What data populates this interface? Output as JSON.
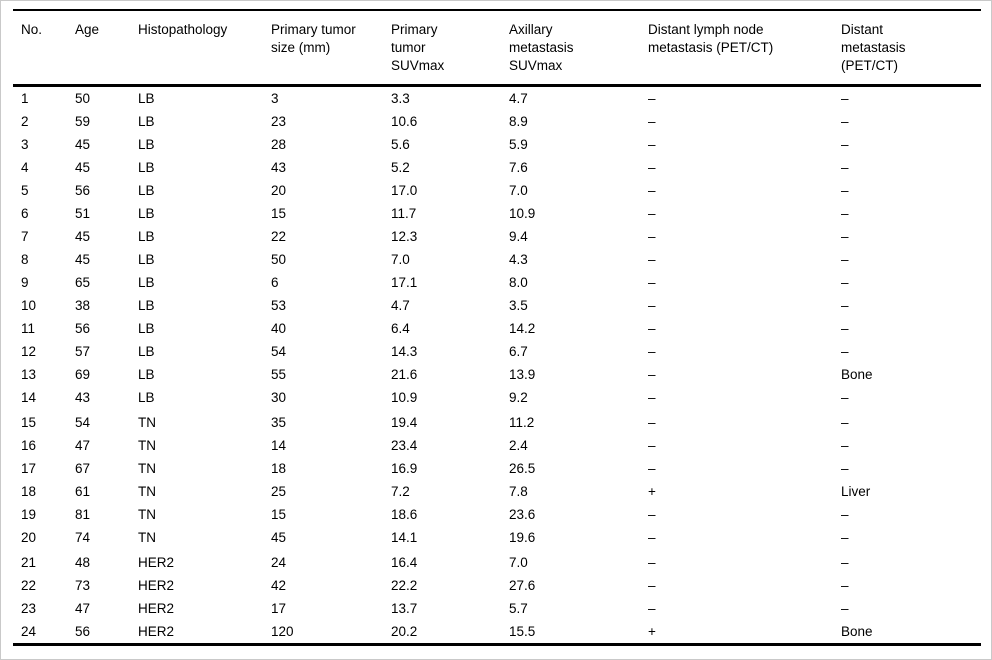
{
  "table": {
    "columns": [
      {
        "key": "no",
        "label": "No."
      },
      {
        "key": "age",
        "label": "Age"
      },
      {
        "key": "histopathology",
        "label": "Histopathology"
      },
      {
        "key": "primary_tumor_size_mm",
        "label": "Primary tumor\nsize (mm)"
      },
      {
        "key": "primary_tumor_suvmax",
        "label": "Primary\ntumor\nSUVmax"
      },
      {
        "key": "axillary_metastasis_suvmax",
        "label": "Axillary\nmetastasis\nSUVmax"
      },
      {
        "key": "distant_lymph_node_metastasis",
        "label": "Distant lymph node\nmetastasis (PET/CT)"
      },
      {
        "key": "distant_metastasis",
        "label": "Distant\nmetastasis\n(PET/CT)"
      }
    ],
    "rows": [
      [
        "1",
        "50",
        "LB",
        "3",
        "3.3",
        "4.7",
        "–",
        "–"
      ],
      [
        "2",
        "59",
        "LB",
        "23",
        "10.6",
        "8.9",
        "–",
        "–"
      ],
      [
        "3",
        "45",
        "LB",
        "28",
        "5.6",
        "5.9",
        "–",
        "–"
      ],
      [
        "4",
        "45",
        "LB",
        "43",
        "5.2",
        "7.6",
        "–",
        "–"
      ],
      [
        "5",
        "56",
        "LB",
        "20",
        "17.0",
        "7.0",
        "–",
        "–"
      ],
      [
        "6",
        "51",
        "LB",
        "15",
        "11.7",
        "10.9",
        "–",
        "–"
      ],
      [
        "7",
        "45",
        "LB",
        "22",
        "12.3",
        "9.4",
        "–",
        "–"
      ],
      [
        "8",
        "45",
        "LB",
        "50",
        "7.0",
        "4.3",
        "–",
        "–"
      ],
      [
        "9",
        "65",
        "LB",
        "6",
        "17.1",
        "8.0",
        "–",
        "–"
      ],
      [
        "10",
        "38",
        "LB",
        "53",
        "4.7",
        "3.5",
        "–",
        "–"
      ],
      [
        "11",
        "56",
        "LB",
        "40",
        "6.4",
        "14.2",
        "–",
        "–"
      ],
      [
        "12",
        "57",
        "LB",
        "54",
        "14.3",
        "6.7",
        "–",
        "–"
      ],
      [
        "13",
        "69",
        "LB",
        "55",
        "21.6",
        "13.9",
        "–",
        "Bone"
      ],
      [
        "14",
        "43",
        "LB",
        "30",
        "10.9",
        "9.2",
        "–",
        "–"
      ],
      [
        "15",
        "54",
        "TN",
        "35",
        "19.4",
        "11.2",
        "–",
        "–"
      ],
      [
        "16",
        "47",
        "TN",
        "14",
        "23.4",
        "2.4",
        "–",
        "–"
      ],
      [
        "17",
        "67",
        "TN",
        "18",
        "16.9",
        "26.5",
        "–",
        "–"
      ],
      [
        "18",
        "61",
        "TN",
        "25",
        "7.2",
        "7.8",
        "+",
        "Liver"
      ],
      [
        "19",
        "81",
        "TN",
        "15",
        "18.6",
        "23.6",
        "–",
        "–"
      ],
      [
        "20",
        "74",
        "TN",
        "45",
        "14.1",
        "19.6",
        "–",
        "–"
      ],
      [
        "21",
        "48",
        "HER2",
        "24",
        "16.4",
        "7.0",
        "–",
        "–"
      ],
      [
        "22",
        "73",
        "HER2",
        "42",
        "22.2",
        "27.6",
        "–",
        "–"
      ],
      [
        "23",
        "47",
        "HER2",
        "17",
        "13.7",
        "5.7",
        "–",
        "–"
      ],
      [
        "24",
        "56",
        "HER2",
        "120",
        "20.2",
        "15.5",
        "+",
        "Bone"
      ]
    ]
  },
  "colors": {
    "text": "#000000",
    "rule": "#000000",
    "frame_border": "#c9c9c9",
    "background": "#ffffff"
  }
}
